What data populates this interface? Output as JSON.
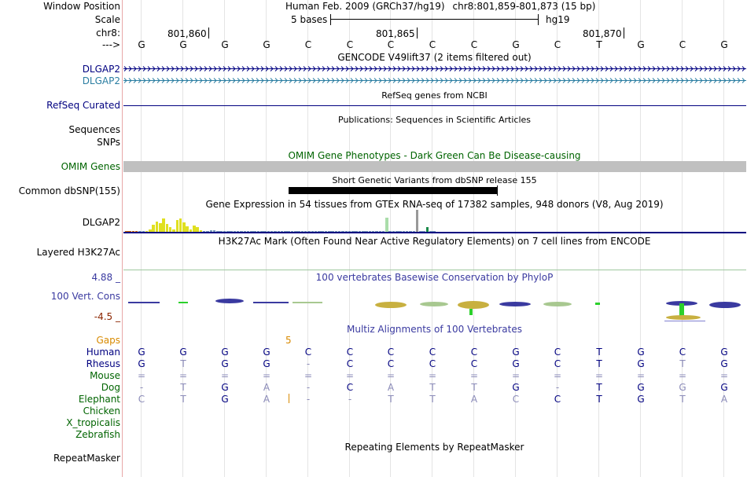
{
  "window_position": {
    "label": "Window Position",
    "assembly": "Human Feb. 2009 (GRCh37/hg19)",
    "region": "chr8:801,859-801,873 (15 bp)"
  },
  "scale": {
    "label": "Scale",
    "bases": "5 bases",
    "db": "hg19"
  },
  "chr_ruler": {
    "label": "chr8:",
    "ticks": [
      "801,860",
      "801,865",
      "801,870"
    ]
  },
  "strand": {
    "label": "--->"
  },
  "sequence": [
    "G",
    "G",
    "G",
    "G",
    "C",
    "C",
    "C",
    "C",
    "C",
    "G",
    "C",
    "T",
    "G",
    "C",
    "G"
  ],
  "tracks": {
    "gencode": {
      "title": "GENCODE V49lift37 (2 items filtered out)",
      "item1": "DLGAP2",
      "item2": "DLGAP2"
    },
    "refseq": {
      "title": "RefSeq genes from NCBI",
      "label": "RefSeq Curated"
    },
    "publications": {
      "title": "Publications: Sequences in Scientific Articles",
      "label": "Sequences"
    },
    "snps": {
      "label": "SNPs"
    },
    "omim": {
      "title": "OMIM Gene Phenotypes - Dark Green Can Be Disease-causing",
      "label": "OMIM Genes"
    },
    "dbsnp": {
      "title": "Short Genetic Variants from dbSNP release 155",
      "label": "Common dbSNP(155)"
    },
    "gtex": {
      "title": "Gene Expression in 54 tissues from GTEx RNA-seq of 17382 samples, 948 donors (V8, Aug 2019)",
      "label": "DLGAP2"
    },
    "h3k27ac": {
      "title": "H3K27Ac Mark (Often Found Near Active Regulatory Elements) on 7 cell lines from ENCODE",
      "label": "Layered H3K27Ac"
    },
    "cons": {
      "title": "100 vertebrates Basewise Conservation by PhyloP",
      "label": "100 Vert. Cons",
      "max": "4.88 _",
      "min": "-4.5 _"
    },
    "multiz": {
      "title": "Multiz Alignments of 100 Vertebrates",
      "gaps_label": "Gaps",
      "gap_count": "5"
    },
    "repeatmasker": {
      "title": "Repeating Elements by RepeatMasker",
      "label": "RepeatMasker"
    }
  },
  "alignment": {
    "species": [
      {
        "name": "Human",
        "bases": [
          "G",
          "G",
          "G",
          "G",
          "C",
          "C",
          "C",
          "C",
          "C",
          "G",
          "C",
          "T",
          "G",
          "C",
          "G"
        ]
      },
      {
        "name": "Rhesus",
        "bases": [
          "G",
          "T",
          "G",
          "G",
          "-",
          "C",
          "C",
          "C",
          "C",
          "G",
          "C",
          "T",
          "G",
          "T",
          "G"
        ]
      },
      {
        "name": "Mouse",
        "bases": [
          "=",
          "=",
          "=",
          "=",
          "=",
          "=",
          "=",
          "=",
          "=",
          "=",
          "=",
          "=",
          "=",
          "=",
          "="
        ]
      },
      {
        "name": "Dog",
        "bases": [
          "-",
          "T",
          "G",
          "A",
          "-",
          "C",
          "A",
          "T",
          "T",
          "G",
          "-",
          "T",
          "G",
          "G",
          "G"
        ]
      },
      {
        "name": "Elephant",
        "bases": [
          "C",
          "T",
          "G",
          "A",
          "-",
          "-",
          "T",
          "T",
          "A",
          "C",
          "C",
          "T",
          "G",
          "T",
          "A"
        ]
      }
    ],
    "empty_species": [
      "Chicken",
      "X_tropicalis",
      "Zebrafish"
    ]
  },
  "gtex_values": [
    0.05,
    0.02,
    0,
    0,
    0,
    0,
    0.05,
    0.12,
    0.32,
    0.45,
    0.38,
    0.6,
    0.35,
    0.2,
    0.12,
    0.55,
    0.62,
    0.42,
    0.25,
    0.12,
    0.3,
    0.2,
    0.08,
    0.05,
    0.04,
    0.06,
    0.08,
    0.03,
    0.05,
    0.04,
    0.02,
    0.04,
    0.02,
    0.02,
    0.01,
    0.03,
    0.02,
    0.01,
    0.01,
    0.02,
    0.01,
    0.01,
    0.02,
    0.01,
    0.01,
    0.01,
    0.01,
    0.02,
    0.01,
    0.01,
    0.01,
    0.01,
    0.01,
    0.01,
    0.01,
    0.01,
    0.02,
    0.02,
    0.01,
    0.01,
    0.02,
    0.01,
    0.02,
    0.01,
    0.01,
    0.01,
    0.01,
    0.01,
    0.01,
    0.01,
    0.01,
    0.01,
    0.01,
    0.01,
    0.01,
    0.01,
    0.01,
    0.65,
    0.01,
    0.01,
    0.01,
    0.01,
    0.01,
    0.01,
    0.01,
    0.01,
    0.99,
    0.02,
    0.01,
    0.2,
    0.05,
    0.01
  ],
  "colors": {
    "label_blue": "#000080",
    "label_teal": "#2b7ea2",
    "omim_green": "#006400",
    "gaps_orange": "#d88a00",
    "species_green": "#006400",
    "cons_blue": "#3a3aa0",
    "cons_red": "#8b2500"
  }
}
